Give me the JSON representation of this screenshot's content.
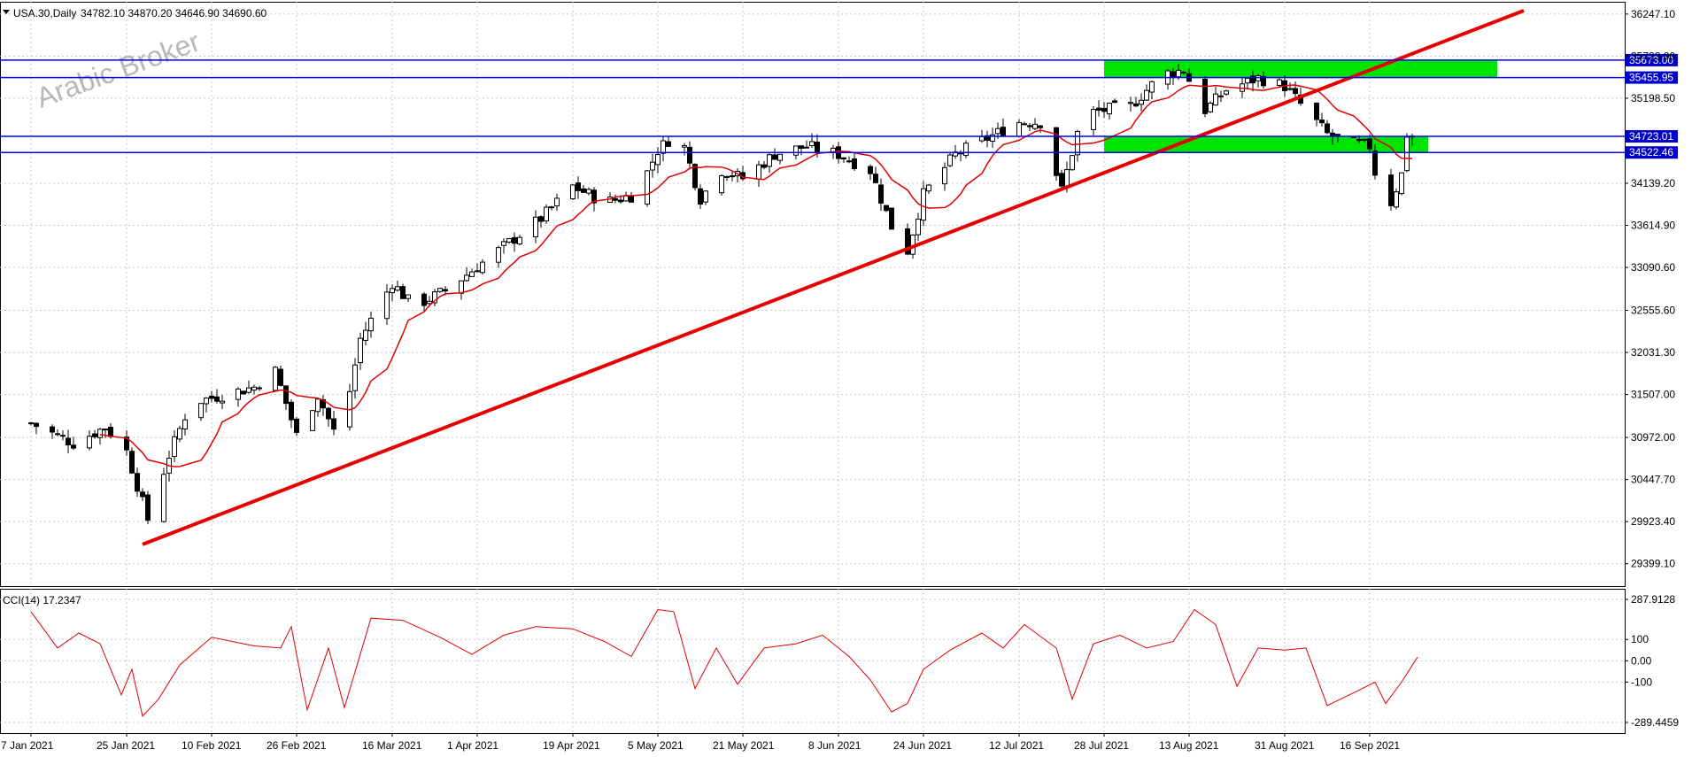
{
  "header": {
    "symbol": "USA.30,Daily",
    "ohlc": "34782.10 34870.20 34646.90 34690.60"
  },
  "watermark": "Arabic Broker",
  "chart_data": [
    {
      "type": "candlestick",
      "symbol": "USA.30",
      "timeframe": "Daily",
      "ylim": [
        29120,
        36400
      ],
      "yticks": [
        36247.1,
        35723.0,
        35198.5,
        34139.2,
        33614.9,
        33090.6,
        32555.6,
        32031.3,
        31507.0,
        30972.0,
        30447.7,
        29923.4,
        29399.1
      ],
      "ytick_labels": [
        "36247.10",
        "35723.00",
        "35198.50",
        "34139.20",
        "33614.90",
        "33090.60",
        "32555.60",
        "32031.30",
        "31507.00",
        "30972.00",
        "30447.70",
        "29923.40",
        "29399.10"
      ],
      "x_dates": [
        "7 Jan 2021",
        "25 Jan 2021",
        "10 Feb 2021",
        "26 Feb 2021",
        "16 Mar 2021",
        "1 Apr 2021",
        "19 Apr 2021",
        "5 May 2021",
        "21 May 2021",
        "8 Jun 2021",
        "24 Jun 2021",
        "12 Jul 2021",
        "28 Jul 2021",
        "13 Aug 2021",
        "31 Aug 2021",
        "16 Sep 2021"
      ],
      "grid": true,
      "moving_average_color": "#e00000",
      "trendline": {
        "color": "#e60000",
        "from": {
          "date": "28 Jan 2021",
          "price": 29640
        },
        "to": {
          "date": "15 Oct 2021",
          "price": 36290
        }
      },
      "horizontal_levels": [
        {
          "price": 35673.0,
          "label": "35673.00",
          "color": "#0000ff"
        },
        {
          "price": 35455.95,
          "label": "35455.95",
          "color": "#0000ff"
        },
        {
          "price": 34723.01,
          "label": "34723.01",
          "color": "#0000ff"
        },
        {
          "price": 34522.46,
          "label": "34522.46",
          "color": "#0000ff"
        }
      ],
      "zones": [
        {
          "from": "28 Jul 2021",
          "to": "10 Oct 2021",
          "top": 35673.0,
          "bottom": 35455.95,
          "color": "#00e400"
        },
        {
          "from": "28 Jul 2021",
          "to": "27 Sep 2021",
          "top": 34723.01,
          "bottom": 34522.46,
          "color": "#00e400"
        }
      ],
      "close_path": [
        {
          "date": "7 Jan 2021",
          "price": 31150
        },
        {
          "date": "15 Jan 2021",
          "price": 30900
        },
        {
          "date": "21 Jan 2021",
          "price": 31100
        },
        {
          "date": "25 Jan 2021",
          "price": 30800
        },
        {
          "date": "29 Jan 2021",
          "price": 29950
        },
        {
          "date": "2 Feb 2021",
          "price": 30750
        },
        {
          "date": "6 Feb 2021",
          "price": 31400
        },
        {
          "date": "12 Feb 2021",
          "price": 31500
        },
        {
          "date": "18 Feb 2021",
          "price": 31600
        },
        {
          "date": "22 Feb 2021",
          "price": 31800
        },
        {
          "date": "26 Feb 2021",
          "price": 31000
        },
        {
          "date": "2 Mar 2021",
          "price": 31500
        },
        {
          "date": "6 Mar 2021",
          "price": 30900
        },
        {
          "date": "10 Mar 2021",
          "price": 32200
        },
        {
          "date": "16 Mar 2021",
          "price": 32900
        },
        {
          "date": "20 Mar 2021",
          "price": 32600
        },
        {
          "date": "26 Mar 2021",
          "price": 32800
        },
        {
          "date": "1 Apr 2021",
          "price": 33100
        },
        {
          "date": "7 Apr 2021",
          "price": 33400
        },
        {
          "date": "13 Apr 2021",
          "price": 33700
        },
        {
          "date": "19 Apr 2021",
          "price": 34100
        },
        {
          "date": "25 Apr 2021",
          "price": 33900
        },
        {
          "date": "1 May 2021",
          "price": 34000
        },
        {
          "date": "5 May 2021",
          "price": 34550
        },
        {
          "date": "9 May 2021",
          "price": 34800
        },
        {
          "date": "13 May 2021",
          "price": 33950
        },
        {
          "date": "17 May 2021",
          "price": 34300
        },
        {
          "date": "21 May 2021",
          "price": 34200
        },
        {
          "date": "27 May 2021",
          "price": 34500
        },
        {
          "date": "2 Jun 2021",
          "price": 34600
        },
        {
          "date": "8 Jun 2021",
          "price": 34500
        },
        {
          "date": "14 Jun 2021",
          "price": 34300
        },
        {
          "date": "18 Jun 2021",
          "price": 33600
        },
        {
          "date": "21 Jun 2021",
          "price": 33300
        },
        {
          "date": "24 Jun 2021",
          "price": 34000
        },
        {
          "date": "30 Jun 2021",
          "price": 34500
        },
        {
          "date": "6 Jul 2021",
          "price": 34700
        },
        {
          "date": "12 Jul 2021",
          "price": 34900
        },
        {
          "date": "16 Jul 2021",
          "price": 34900
        },
        {
          "date": "20 Jul 2021",
          "price": 34050
        },
        {
          "date": "24 Jul 2021",
          "price": 35000
        },
        {
          "date": "28 Jul 2021",
          "price": 35050
        },
        {
          "date": "2 Aug 2021",
          "price": 35100
        },
        {
          "date": "8 Aug 2021",
          "price": 35500
        },
        {
          "date": "12 Aug 2021",
          "price": 35550
        },
        {
          "date": "16 Aug 2021",
          "price": 35050
        },
        {
          "date": "20 Aug 2021",
          "price": 35300
        },
        {
          "date": "26 Aug 2021",
          "price": 35450
        },
        {
          "date": "31 Aug 2021",
          "price": 35350
        },
        {
          "date": "4 Sep 2021",
          "price": 35050
        },
        {
          "date": "8 Sep 2021",
          "price": 34750
        },
        {
          "date": "12 Sep 2021",
          "price": 34650
        },
        {
          "date": "16 Sep 2021",
          "price": 34600
        },
        {
          "date": "18 Sep 2021",
          "price": 33950
        },
        {
          "date": "20 Sep 2021",
          "price": 33900
        },
        {
          "date": "22 Sep 2021",
          "price": 34250
        },
        {
          "date": "23 Sep 2021",
          "price": 34750
        },
        {
          "date": "25 Sep 2021",
          "price": 34690
        }
      ]
    },
    {
      "type": "line",
      "indicator": "CCI(14)",
      "label": "CCI(14) 17.2347",
      "ylim": [
        -289.4459,
        287.9128
      ],
      "yticks": [
        287.9128,
        100,
        0.0,
        -100,
        -289.4459
      ],
      "ytick_labels": [
        "287.9128",
        "100",
        "0.00",
        "-100",
        "-289.4459"
      ],
      "color": "#e00000",
      "points": [
        {
          "date": "7 Jan 2021",
          "value": 230
        },
        {
          "date": "12 Jan 2021",
          "value": 60
        },
        {
          "date": "16 Jan 2021",
          "value": 130
        },
        {
          "date": "20 Jan 2021",
          "value": 80
        },
        {
          "date": "24 Jan 2021",
          "value": -160
        },
        {
          "date": "26 Jan 2021",
          "value": -40
        },
        {
          "date": "28 Jan 2021",
          "value": -260
        },
        {
          "date": "31 Jan 2021",
          "value": -180
        },
        {
          "date": "4 Feb 2021",
          "value": -20
        },
        {
          "date": "10 Feb 2021",
          "value": 110
        },
        {
          "date": "18 Feb 2021",
          "value": 70
        },
        {
          "date": "23 Feb 2021",
          "value": 60
        },
        {
          "date": "25 Feb 2021",
          "value": 160
        },
        {
          "date": "28 Feb 2021",
          "value": -230
        },
        {
          "date": "4 Mar 2021",
          "value": 60
        },
        {
          "date": "7 Mar 2021",
          "value": -220
        },
        {
          "date": "12 Mar 2021",
          "value": 200
        },
        {
          "date": "18 Mar 2021",
          "value": 190
        },
        {
          "date": "25 Mar 2021",
          "value": 110
        },
        {
          "date": "31 Mar 2021",
          "value": 30
        },
        {
          "date": "6 Apr 2021",
          "value": 120
        },
        {
          "date": "12 Apr 2021",
          "value": 160
        },
        {
          "date": "19 Apr 2021",
          "value": 150
        },
        {
          "date": "25 Apr 2021",
          "value": 90
        },
        {
          "date": "30 Apr 2021",
          "value": 20
        },
        {
          "date": "5 May 2021",
          "value": 240
        },
        {
          "date": "8 May 2021",
          "value": 230
        },
        {
          "date": "12 May 2021",
          "value": -130
        },
        {
          "date": "16 May 2021",
          "value": 60
        },
        {
          "date": "20 May 2021",
          "value": -110
        },
        {
          "date": "25 May 2021",
          "value": 60
        },
        {
          "date": "31 May 2021",
          "value": 80
        },
        {
          "date": "5 Jun 2021",
          "value": 120
        },
        {
          "date": "10 Jun 2021",
          "value": 20
        },
        {
          "date": "14 Jun 2021",
          "value": -90
        },
        {
          "date": "18 Jun 2021",
          "value": -240
        },
        {
          "date": "21 Jun 2021",
          "value": -200
        },
        {
          "date": "24 Jun 2021",
          "value": -40
        },
        {
          "date": "29 Jun 2021",
          "value": 50
        },
        {
          "date": "5 Jul 2021",
          "value": 130
        },
        {
          "date": "9 Jul 2021",
          "value": 60
        },
        {
          "date": "13 Jul 2021",
          "value": 170
        },
        {
          "date": "19 Jul 2021",
          "value": 60
        },
        {
          "date": "22 Jul 2021",
          "value": -180
        },
        {
          "date": "26 Jul 2021",
          "value": 80
        },
        {
          "date": "31 Jul 2021",
          "value": 120
        },
        {
          "date": "5 Aug 2021",
          "value": 60
        },
        {
          "date": "10 Aug 2021",
          "value": 90
        },
        {
          "date": "14 Aug 2021",
          "value": 240
        },
        {
          "date": "18 Aug 2021",
          "value": 170
        },
        {
          "date": "22 Aug 2021",
          "value": -120
        },
        {
          "date": "26 Aug 2021",
          "value": 60
        },
        {
          "date": "31 Aug 2021",
          "value": 50
        },
        {
          "date": "4 Sep 2021",
          "value": 60
        },
        {
          "date": "8 Sep 2021",
          "value": -210
        },
        {
          "date": "13 Sep 2021",
          "value": -150
        },
        {
          "date": "17 Sep 2021",
          "value": -100
        },
        {
          "date": "19 Sep 2021",
          "value": -200
        },
        {
          "date": "22 Sep 2021",
          "value": -100
        },
        {
          "date": "25 Sep 2021",
          "value": 17.2347
        }
      ]
    }
  ]
}
